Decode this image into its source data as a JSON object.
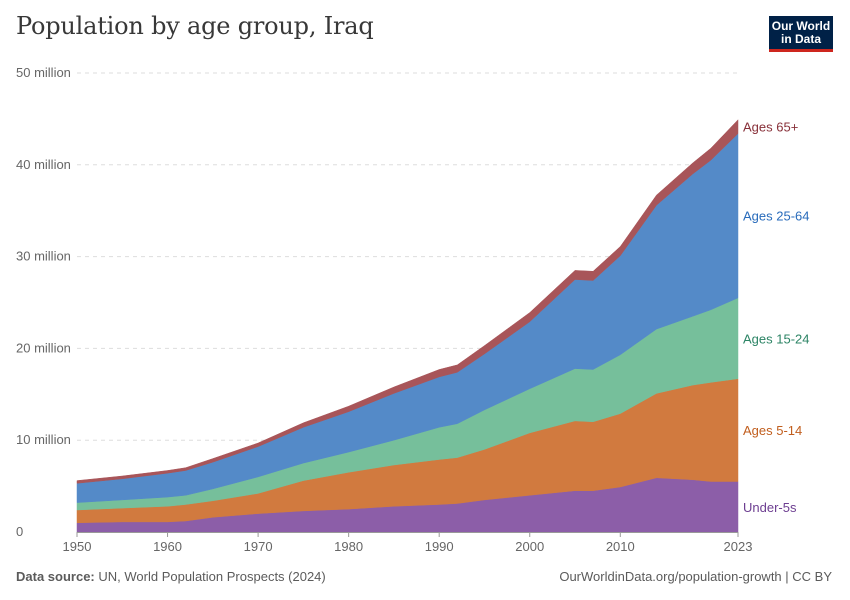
{
  "header": {
    "title": "Population by age group, Iraq",
    "logo_line1": "Our World",
    "logo_line2": "in Data"
  },
  "footer": {
    "source_label": "Data source:",
    "source_text": "UN, World Population Prospects (2024)",
    "url": "OurWorldinData.org/population-growth | CC BY"
  },
  "chart_data": {
    "type": "area",
    "title": "Population by age group, Iraq",
    "stacked": true,
    "x_ticks": [
      1950,
      1960,
      1970,
      1980,
      1990,
      2000,
      2010,
      2023
    ],
    "y_ticks": [
      0,
      10000000,
      20000000,
      30000000,
      40000000,
      50000000
    ],
    "y_tick_labels": [
      "0",
      "10 million",
      "20 million",
      "30 million",
      "40 million",
      "50 million"
    ],
    "ylim": [
      0,
      50000000
    ],
    "xlim": [
      1950,
      2023
    ],
    "grid": true,
    "legend_placement": "right-end labels",
    "x": [
      1950,
      1955,
      1960,
      1962,
      1965,
      1970,
      1975,
      1980,
      1985,
      1990,
      1992,
      1995,
      2000,
      2005,
      2007,
      2010,
      2014,
      2018,
      2020,
      2023
    ],
    "series": [
      {
        "name": "Under-5s",
        "color": "#8c5ea8",
        "values": [
          1000000,
          1100000,
          1100000,
          1200000,
          1600000,
          2000000,
          2300000,
          2500000,
          2800000,
          3000000,
          3100000,
          3500000,
          4000000,
          4500000,
          4500000,
          4900000,
          5900000,
          5700000,
          5500000,
          5500000
        ]
      },
      {
        "name": "Ages 5-14",
        "color": "#d17a3f",
        "values": [
          1400000,
          1500000,
          1700000,
          1800000,
          1800000,
          2200000,
          3300000,
          4000000,
          4500000,
          4900000,
          5000000,
          5500000,
          6800000,
          7600000,
          7500000,
          8000000,
          9200000,
          10300000,
          10800000,
          11200000
        ]
      },
      {
        "name": "Ages 15-24",
        "color": "#76bf9b",
        "values": [
          800000,
          900000,
          1000000,
          1000000,
          1300000,
          1800000,
          1900000,
          2200000,
          2700000,
          3500000,
          3700000,
          4300000,
          4800000,
          5700000,
          5700000,
          6400000,
          7000000,
          7500000,
          7900000,
          8800000
        ]
      },
      {
        "name": "Ages 25-64",
        "color": "#548ac8",
        "values": [
          2100000,
          2300000,
          2600000,
          2700000,
          2900000,
          3300000,
          3900000,
          4400000,
          5100000,
          5500000,
          5600000,
          6100000,
          7300000,
          9700000,
          9700000,
          10800000,
          13500000,
          15500000,
          16300000,
          17900000
        ]
      },
      {
        "name": "Ages 65+",
        "color": "#a85559",
        "values": [
          300000,
          300000,
          300000,
          300000,
          400000,
          400000,
          500000,
          600000,
          700000,
          800000,
          800000,
          900000,
          1000000,
          1000000,
          1000000,
          1000000,
          1100000,
          1200000,
          1300000,
          1500000
        ]
      }
    ],
    "label_colors": [
      "#6d3e91",
      "#c15e1e",
      "#2c8465",
      "#286bbb",
      "#883039"
    ]
  }
}
